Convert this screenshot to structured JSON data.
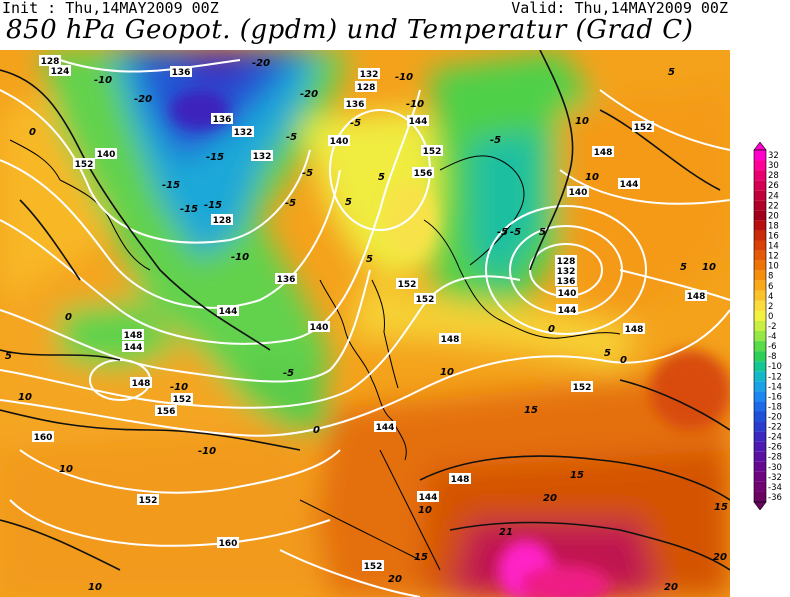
{
  "header": {
    "init": "Init : Thu,14MAY2009 00Z",
    "valid": "Valid: Thu,14MAY2009 00Z",
    "title": "850 hPa Geopot. (gpdm) und Temperatur (Grad C)"
  },
  "colors": {
    "background": "#ffffff",
    "geopotential_contour": "#ffffff",
    "temperature_contour": "#000000",
    "coastline": "#000000"
  },
  "map": {
    "geopotential_labels": [
      "128",
      "124",
      "136",
      "132",
      "128",
      "132",
      "136",
      "144",
      "140",
      "136",
      "132",
      "128",
      "136",
      "140",
      "144",
      "144",
      "152",
      "156",
      "128",
      "132",
      "136",
      "140",
      "144",
      "148",
      "152",
      "152",
      "148",
      "144",
      "148",
      "148",
      "152",
      "156",
      "160",
      "160",
      "152",
      "152",
      "148",
      "140",
      "144",
      "140",
      "148",
      "152",
      "144",
      "148",
      "152",
      "152"
    ],
    "temperature_labels": [
      "-20",
      "-20",
      "-20",
      "-15",
      "-15",
      "-15",
      "-15",
      "-10",
      "-10",
      "-10",
      "-10",
      "-10",
      "-10",
      "-5",
      "-5",
      "-5",
      "-5",
      "-5",
      "-5",
      "-5",
      "-5",
      "0",
      "0",
      "0",
      "0",
      "0",
      "5",
      "5",
      "5",
      "5",
      "5",
      "5",
      "5",
      "5",
      "10",
      "10",
      "10",
      "10",
      "10",
      "10",
      "10",
      "10",
      "15",
      "15",
      "15",
      "15",
      "20",
      "20",
      "20",
      "20",
      "21"
    ]
  },
  "color_scale": {
    "labels": [
      "32",
      "30",
      "28",
      "26",
      "24",
      "22",
      "20",
      "18",
      "16",
      "14",
      "12",
      "10",
      "8",
      "6",
      "4",
      "2",
      "0",
      "-2",
      "-4",
      "-6",
      "-8",
      "-10",
      "-12",
      "-14",
      "-16",
      "-18",
      "-20",
      "-22",
      "-24",
      "-26",
      "-28",
      "-30",
      "-32",
      "-34",
      "-36"
    ],
    "colors": [
      "#ff00cc",
      "#ff0099",
      "#e8006e",
      "#d40052",
      "#c0003a",
      "#b00028",
      "#a0001c",
      "#b81010",
      "#c82a0a",
      "#d84008",
      "#e45a06",
      "#ee7406",
      "#f48e0c",
      "#f8a818",
      "#fac228",
      "#fcdc3c",
      "#f2f240",
      "#c8ee44",
      "#96e846",
      "#58dc48",
      "#2cd058",
      "#14c690",
      "#14b8c8",
      "#1aa2e6",
      "#1e86f0",
      "#1e6ae6",
      "#1e50d8",
      "#2a3ccc",
      "#3c28c0",
      "#4c1ab0",
      "#5a10a0",
      "#660890",
      "#6e0680",
      "#700470",
      "#6a0460"
    ]
  }
}
